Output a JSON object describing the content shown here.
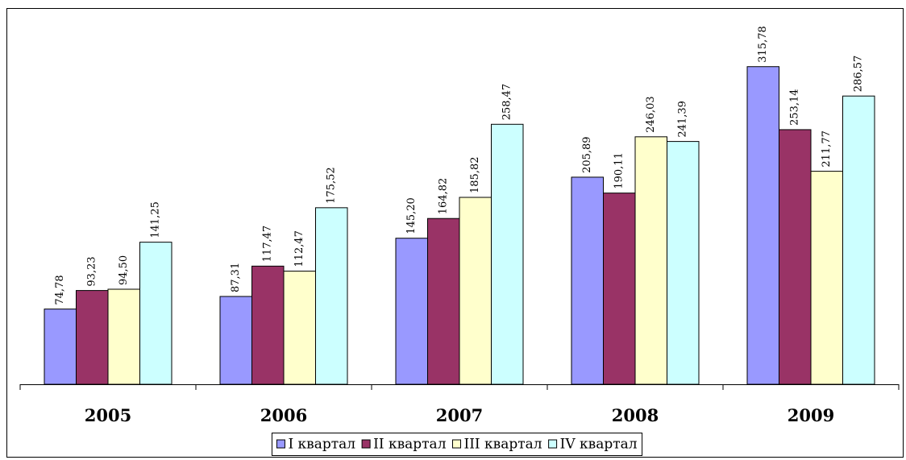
{
  "chart_data": {
    "type": "bar",
    "categories": [
      "2005",
      "2006",
      "2007",
      "2008",
      "2009"
    ],
    "series": [
      {
        "name": "I квартал",
        "color": "#9999ff",
        "values": [
          74.78,
          87.31,
          145.2,
          205.89,
          315.78
        ],
        "value_labels": [
          "74,78",
          "87,31",
          "145,20",
          "205,89",
          "315,78"
        ]
      },
      {
        "name": "II квартал",
        "color": "#993366",
        "values": [
          93.23,
          117.47,
          164.82,
          190.11,
          253.14
        ],
        "value_labels": [
          "93,23",
          "117,47",
          "164,82",
          "190,11",
          "253,14"
        ]
      },
      {
        "name": "III квартал",
        "color": "#ffffcc",
        "values": [
          94.5,
          112.47,
          185.82,
          246.03,
          211.77
        ],
        "value_labels": [
          "94,50",
          "112,47",
          "185,82",
          "246,03",
          "211,77"
        ]
      },
      {
        "name": "IV квартал",
        "color": "#ccffff",
        "values": [
          141.25,
          175.52,
          258.47,
          241.39,
          286.57
        ],
        "value_labels": [
          "141,25",
          "175,52",
          "258,47",
          "241,39",
          "286,57"
        ]
      }
    ],
    "ylim": [
      0,
      350
    ],
    "legend": "bottom"
  }
}
